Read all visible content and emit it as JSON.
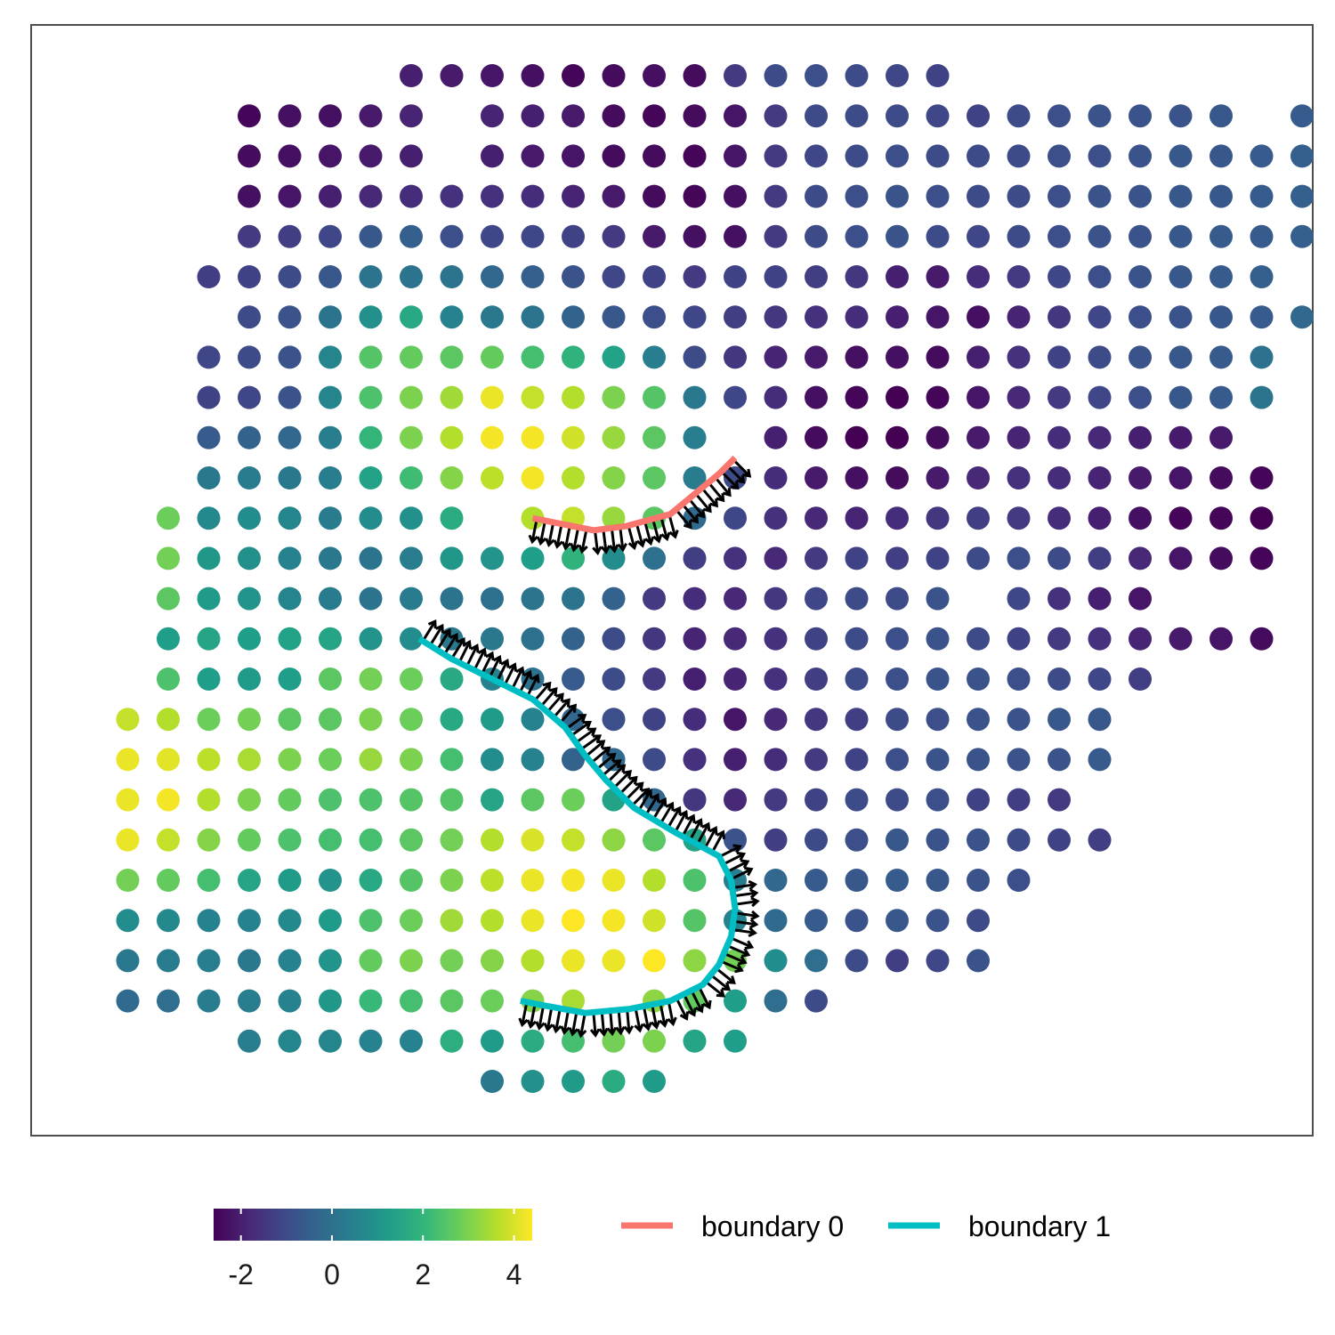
{
  "chart_data": {
    "type": "scatter",
    "title": "",
    "xlabel": "",
    "ylabel": "",
    "grid": false,
    "panel_border": true,
    "legend_placement": "bottom",
    "colorbar": {
      "palette": "viridis",
      "range": [
        -2.6,
        4.4
      ],
      "ticks": [
        -2,
        0,
        2,
        4
      ],
      "tick_labels": [
        "-2",
        "0",
        "2",
        "4"
      ],
      "stops": [
        "#440154",
        "#482878",
        "#3e4989",
        "#31688e",
        "#26828e",
        "#1f9e89",
        "#35b779",
        "#6ece58",
        "#b5de2b",
        "#fde725"
      ]
    },
    "grid_spec": {
      "x_step": 1,
      "y_step": 1,
      "x_range": [
        0,
        29
      ],
      "y_range": [
        0,
        25
      ]
    },
    "rows": [
      {
        "y": 0,
        "x0": 8,
        "values": [
          -2.0,
          -2.1,
          -2.2,
          -2.3,
          -2.5,
          -2.4,
          -2.3,
          -2.4,
          -1.4,
          -1.0,
          -0.9,
          -1.0,
          -1.1,
          -1.2
        ]
      },
      {
        "y": 1,
        "x0": 4,
        "values": [
          -2.5,
          -2.3,
          -2.3,
          -2.1,
          -1.9,
          null,
          -1.9,
          -2.0,
          -2.1,
          -2.4,
          -2.5,
          -2.4,
          -2.2,
          -1.4,
          -1.0,
          -1.0,
          -1.0,
          -1.1,
          -1.2,
          -1.0,
          -0.9,
          -0.8,
          -0.8,
          -0.8,
          -0.7,
          null,
          -0.6
        ]
      },
      {
        "y": 2,
        "x0": 4,
        "values": [
          -2.4,
          -2.3,
          -2.2,
          -2.1,
          -2.0,
          null,
          -2.0,
          -2.1,
          -2.2,
          -2.4,
          -2.4,
          -2.5,
          -2.2,
          -1.4,
          -1.1,
          -1.0,
          -0.9,
          -1.0,
          -1.0,
          -1.0,
          -0.9,
          -0.9,
          -0.8,
          -0.7,
          -0.7,
          -0.6,
          -0.5
        ]
      },
      {
        "y": 3,
        "x0": 4,
        "values": [
          -2.3,
          -2.2,
          -2.0,
          -1.8,
          -1.7,
          -1.6,
          -1.6,
          -1.7,
          -1.9,
          -2.1,
          -2.4,
          -2.5,
          -2.3,
          -1.4,
          -1.0,
          -0.9,
          -0.8,
          -0.9,
          -1.0,
          -1.0,
          -0.9,
          -0.8,
          -0.8,
          -0.7,
          -0.7,
          -0.6,
          -0.5
        ]
      },
      {
        "y": 4,
        "x0": 4,
        "values": [
          -1.4,
          -1.3,
          -1.1,
          -0.7,
          -0.5,
          -0.9,
          -1.1,
          -1.1,
          -1.2,
          -1.4,
          -2.1,
          -2.3,
          -2.3,
          -1.4,
          -1.0,
          -0.9,
          -0.8,
          -1.0,
          -1.1,
          -1.0,
          -0.9,
          -0.8,
          -0.8,
          -0.7,
          -0.6,
          -0.6,
          -0.5
        ]
      },
      {
        "y": 5,
        "x0": 3,
        "values": [
          -1.3,
          -1.2,
          -1.0,
          -0.7,
          0.1,
          0.1,
          0.1,
          -0.3,
          -0.5,
          -0.8,
          -1.1,
          -1.2,
          -1.4,
          -1.2,
          -1.2,
          -1.3,
          -1.5,
          -2.0,
          -2.1,
          -1.7,
          -1.4,
          -1.1,
          -0.9,
          -0.8,
          -0.7,
          -0.6,
          -0.5
        ]
      },
      {
        "y": 6,
        "x0": 4,
        "values": [
          -1.0,
          -0.8,
          0.1,
          0.9,
          1.6,
          0.5,
          0.2,
          0.1,
          -0.4,
          -0.7,
          -0.9,
          -1.1,
          -1.3,
          -1.5,
          -1.6,
          -1.7,
          -2.0,
          -2.2,
          -2.3,
          -1.9,
          -1.5,
          -1.1,
          -0.9,
          -0.8,
          -0.7,
          -0.6,
          -0.3
        ]
      },
      {
        "y": 7,
        "x0": 3,
        "values": [
          -1.1,
          -1.0,
          -0.8,
          0.6,
          2.5,
          2.7,
          2.6,
          2.7,
          2.3,
          1.9,
          1.4,
          0.4,
          -1.0,
          -1.5,
          -1.9,
          -2.1,
          -2.3,
          -2.3,
          -2.4,
          -2.0,
          -1.6,
          -1.2,
          -1.0,
          -0.8,
          -0.7,
          -0.6,
          0.0
        ]
      },
      {
        "y": 8,
        "x0": 3,
        "values": [
          -1.2,
          -1.1,
          -0.8,
          0.6,
          2.4,
          3.0,
          3.4,
          4.2,
          3.8,
          3.6,
          3.0,
          2.5,
          0.2,
          -1.1,
          -1.7,
          -2.3,
          -2.5,
          -2.6,
          -2.5,
          -2.2,
          -1.8,
          -1.4,
          -1.1,
          -0.9,
          -0.7,
          -0.6,
          0.1
        ]
      },
      {
        "y": 9,
        "x0": 3,
        "values": [
          -0.6,
          -0.4,
          -0.3,
          0.4,
          2.0,
          3.0,
          3.6,
          4.3,
          4.3,
          3.9,
          3.3,
          2.6,
          0.4,
          null,
          -2.0,
          -2.4,
          -2.6,
          -2.6,
          -2.4,
          -2.1,
          -1.9,
          -1.7,
          -1.8,
          -2.0,
          -2.1,
          -2.1
        ]
      },
      {
        "y": 10,
        "x0": 3,
        "values": [
          0.2,
          0.3,
          0.2,
          0.4,
          1.4,
          2.2,
          3.1,
          3.7,
          4.3,
          3.6,
          3.1,
          2.6,
          0.3,
          -1.0,
          -1.7,
          -2.1,
          -2.3,
          -2.4,
          -2.1,
          -1.8,
          -1.6,
          -1.7,
          -1.9,
          -2.1,
          -2.2,
          -2.4,
          -2.5
        ]
      },
      {
        "y": 11,
        "x0": 2,
        "values": [
          2.8,
          0.7,
          0.8,
          0.6,
          0.3,
          0.8,
          0.9,
          1.7,
          null,
          3.6,
          3.8,
          3.3,
          2.6,
          -0.2,
          -1.1,
          -1.6,
          -1.8,
          -1.9,
          -1.7,
          -1.5,
          -1.3,
          -1.4,
          -1.7,
          -2.0,
          -2.3,
          -2.5,
          -2.5,
          -2.6
        ]
      },
      {
        "y": 12,
        "x0": 2,
        "values": [
          2.9,
          1.1,
          0.9,
          0.5,
          0.2,
          0.1,
          0.4,
          1.1,
          1.0,
          1.3,
          1.9,
          0.8,
          0.0,
          -1.3,
          -1.6,
          -1.8,
          -1.4,
          -1.2,
          -1.3,
          -1.2,
          -1.0,
          -0.9,
          -1.0,
          -1.3,
          -1.8,
          -2.2,
          -2.4,
          -2.5
        ]
      },
      {
        "y": 13,
        "x0": 2,
        "values": [
          2.6,
          1.2,
          1.0,
          0.6,
          0.3,
          0.1,
          0.3,
          0.1,
          0.0,
          0.1,
          0.1,
          -0.4,
          -1.4,
          -1.7,
          -1.8,
          -1.5,
          -1.1,
          -1.0,
          -1.0,
          -0.8,
          null,
          -1.1,
          -1.6,
          -2.0,
          -2.2
        ]
      },
      {
        "y": 14,
        "x0": 2,
        "values": [
          1.3,
          1.5,
          1.3,
          1.4,
          1.5,
          1.0,
          0.8,
          0.2,
          0.2,
          0.0,
          -0.4,
          -1.0,
          -1.5,
          -1.9,
          -1.8,
          -1.6,
          -1.2,
          -1.0,
          -0.9,
          -0.8,
          -1.0,
          -1.2,
          -1.4,
          -1.6,
          -1.9,
          -2.1,
          -2.2,
          -2.4
        ]
      },
      {
        "y": 15,
        "x0": 2,
        "values": [
          2.4,
          1.3,
          1.2,
          1.3,
          2.6,
          2.9,
          2.8,
          1.6,
          0.5,
          0.0,
          -0.6,
          -1.0,
          -1.4,
          -2.0,
          -1.9,
          -1.6,
          -1.3,
          -1.0,
          -0.9,
          -0.8,
          -0.8,
          -0.9,
          -1.0,
          -1.1,
          -1.3
        ]
      },
      {
        "y": 16,
        "x0": 1,
        "values": [
          3.8,
          3.6,
          2.8,
          2.9,
          2.6,
          2.6,
          3.0,
          2.8,
          1.6,
          1.2,
          0.5,
          -0.3,
          -0.9,
          -1.2,
          -1.7,
          -2.2,
          -1.8,
          -1.5,
          -1.3,
          -1.0,
          -0.9,
          -0.8,
          -0.8,
          -0.7,
          -0.7
        ]
      },
      {
        "y": 17,
        "x0": 1,
        "values": [
          4.2,
          4.1,
          3.7,
          3.5,
          3.0,
          2.8,
          3.3,
          3.0,
          2.3,
          0.8,
          0.5,
          -0.4,
          -0.2,
          -1.0,
          -1.6,
          -2.0,
          -1.7,
          -1.4,
          -1.2,
          -0.9,
          -0.8,
          -0.8,
          -0.8,
          -0.8,
          -0.6
        ]
      },
      {
        "y": 18,
        "x0": 1,
        "values": [
          4.2,
          4.3,
          3.6,
          3.0,
          2.7,
          2.4,
          2.4,
          2.5,
          2.5,
          1.5,
          2.6,
          2.8,
          1.4,
          -0.3,
          -1.5,
          -1.8,
          -1.4,
          -1.2,
          -1.0,
          -1.0,
          -0.9,
          -1.2,
          -1.3,
          -1.4
        ]
      },
      {
        "y": 19,
        "x0": 1,
        "values": [
          4.2,
          3.8,
          3.1,
          2.7,
          2.4,
          2.3,
          2.3,
          2.6,
          2.9,
          3.6,
          4.0,
          3.8,
          3.2,
          2.6,
          1.4,
          -0.8,
          -1.3,
          -1.0,
          -0.9,
          -0.7,
          -0.8,
          -0.8,
          -1.0,
          -1.2,
          -1.3
        ]
      },
      {
        "y": 20,
        "x0": 1,
        "values": [
          2.9,
          2.7,
          2.3,
          1.5,
          1.2,
          1.0,
          1.6,
          2.5,
          3.0,
          3.7,
          4.2,
          4.3,
          4.2,
          3.6,
          2.4,
          0.4,
          -0.3,
          -0.6,
          -0.7,
          -0.6,
          -0.7,
          -0.8,
          -0.9
        ]
      },
      {
        "y": 21,
        "x0": 1,
        "values": [
          0.8,
          0.7,
          0.5,
          0.5,
          0.7,
          1.2,
          2.4,
          2.8,
          3.4,
          3.6,
          4.2,
          4.4,
          4.3,
          3.9,
          2.5,
          0.5,
          -0.2,
          -0.6,
          -0.8,
          -0.7,
          -0.8,
          -1.0
        ]
      },
      {
        "y": 22,
        "x0": 1,
        "values": [
          0.2,
          0.3,
          0.4,
          0.2,
          0.5,
          1.0,
          2.7,
          3.0,
          2.9,
          3.1,
          3.6,
          4.2,
          4.2,
          4.4,
          3.2,
          2.9,
          0.8,
          -0.1,
          -1.0,
          -1.3,
          -1.1,
          -0.8
        ]
      },
      {
        "y": 23,
        "x0": 1,
        "values": [
          -0.2,
          -0.1,
          0.3,
          0.4,
          0.5,
          1.1,
          2.1,
          2.3,
          2.6,
          2.8,
          3.1,
          3.5,
          null,
          3.2,
          2.7,
          1.3,
          -0.1,
          -1.0
        ]
      },
      {
        "y": 24,
        "x0": 4,
        "values": [
          0.4,
          0.6,
          0.6,
          0.5,
          0.5,
          1.8,
          1.2,
          1.7,
          2.3,
          2.9,
          3.0,
          1.5,
          1.3
        ]
      },
      {
        "y": 25,
        "x0": 10,
        "values": [
          0.2,
          0.9,
          1.2,
          1.7,
          1.2
        ]
      }
    ],
    "boundaries": [
      {
        "name": "boundary 0",
        "color": "#f8766d",
        "points": [
          [
            11.0,
            11.0
          ],
          [
            12.5,
            11.3
          ],
          [
            13.3,
            11.2
          ],
          [
            14.4,
            10.9
          ],
          [
            15.0,
            10.4
          ],
          [
            15.6,
            9.9
          ],
          [
            16.0,
            9.5
          ]
        ],
        "arrow_side": 1
      },
      {
        "name": "boundary 1",
        "color": "#00bfc4",
        "points": [
          [
            8.2,
            14.0
          ],
          [
            9.0,
            14.5
          ],
          [
            10.0,
            15.0
          ],
          [
            11.0,
            15.5
          ],
          [
            11.8,
            16.2
          ],
          [
            12.3,
            16.9
          ],
          [
            12.8,
            17.5
          ],
          [
            13.5,
            18.2
          ],
          [
            14.5,
            18.8
          ],
          [
            15.6,
            19.4
          ],
          [
            15.9,
            20.0
          ],
          [
            16.0,
            20.7
          ],
          [
            15.9,
            21.4
          ],
          [
            15.6,
            22.1
          ],
          [
            15.2,
            22.6
          ],
          [
            14.4,
            23.0
          ],
          [
            13.4,
            23.2
          ],
          [
            12.3,
            23.3
          ],
          [
            11.2,
            23.1
          ],
          [
            10.7,
            23.0
          ]
        ],
        "arrow_side": -1
      }
    ],
    "legend": {
      "entries": [
        {
          "label": "boundary 0",
          "color": "#f8766d"
        },
        {
          "label": "boundary 1",
          "color": "#00bfc4"
        }
      ]
    }
  }
}
